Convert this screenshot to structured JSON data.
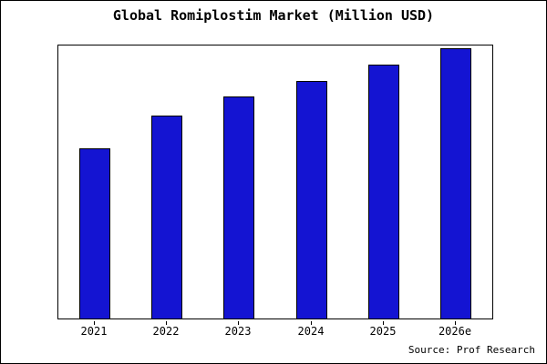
{
  "title": "Global Romiplostim Market (Million USD)",
  "source": "Source: Prof Research",
  "chart_data": {
    "type": "bar",
    "categories": [
      "2021",
      "2022",
      "2023",
      "2024",
      "2025",
      "2026e"
    ],
    "values": [
      63,
      75,
      82,
      88,
      94,
      100
    ],
    "title": "Global Romiplostim Market (Million USD)",
    "xlabel": "",
    "ylabel": "",
    "ylim": [
      0,
      101
    ],
    "grid": false,
    "legend": "none",
    "bar_color": "#1414d2",
    "bar_edge_color": "#000000",
    "source_note": "Source: Prof Research"
  }
}
